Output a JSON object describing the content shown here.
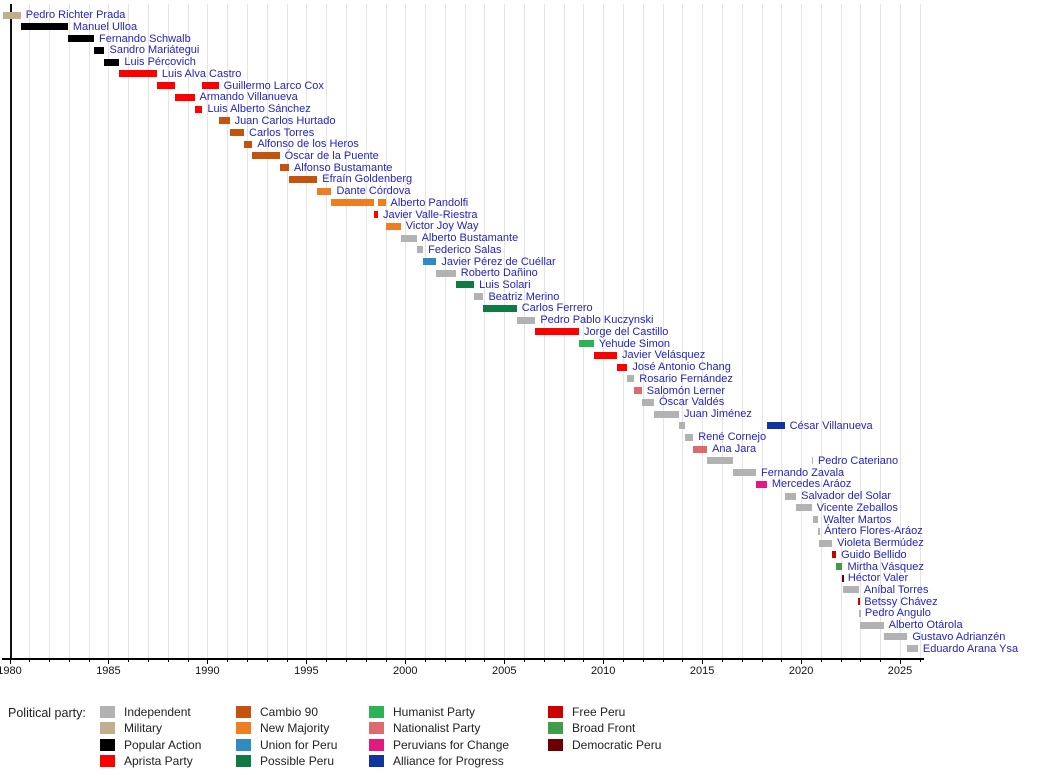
{
  "chart_data": {
    "type": "timeline",
    "x_axis": {
      "start": 1979.65,
      "end": 2026.2,
      "major_ticks": [
        1980,
        1985,
        1990,
        1995,
        2000,
        2005,
        2010,
        2015,
        2020,
        2025
      ],
      "minor_tick_interval": 1,
      "grid": true
    },
    "parties": {
      "independent": {
        "label": "Independent",
        "color": "#b2b2b2"
      },
      "military": {
        "label": "Military",
        "color": "#c0ae8d"
      },
      "popular_action": {
        "label": "Popular Action",
        "color": "#000000"
      },
      "aprista": {
        "label": "Aprista Party",
        "color": "#ff0000"
      },
      "cambio_90": {
        "label": "Cambio 90",
        "color": "#c4540d"
      },
      "new_majority": {
        "label": "New Majority",
        "color": "#ef7d22"
      },
      "union_for_peru": {
        "label": "Union for Peru",
        "color": "#2f8bc0"
      },
      "possible_peru": {
        "label": "Possible Peru",
        "color": "#107a45"
      },
      "humanist": {
        "label": "Humanist Party",
        "color": "#2bb356"
      },
      "nationalist": {
        "label": "Nationalist Party",
        "color": "#dd6a6d"
      },
      "peruvians_for_change": {
        "label": "Peruvians for Change",
        "color": "#e4197e"
      },
      "alliance_for_progress": {
        "label": "Alliance for Progress",
        "color": "#10359f"
      },
      "free_peru": {
        "label": "Free Peru",
        "color": "#cc0000"
      },
      "broad_front": {
        "label": "Broad Front",
        "color": "#3f9d49"
      },
      "democratic_peru": {
        "label": "Democratic Peru",
        "color": "#6b0000"
      }
    },
    "ministers": [
      {
        "name": "Pedro Richter Prada",
        "terms": [
          {
            "start": 1979.65,
            "end": 1980.57,
            "party": "military"
          }
        ]
      },
      {
        "name": "Manuel Ulloa",
        "terms": [
          {
            "start": 1980.57,
            "end": 1982.95,
            "party": "popular_action"
          }
        ]
      },
      {
        "name": "Fernando Schwalb",
        "terms": [
          {
            "start": 1982.95,
            "end": 1984.27,
            "party": "popular_action"
          }
        ]
      },
      {
        "name": "Sandro Mariátegui",
        "terms": [
          {
            "start": 1984.27,
            "end": 1984.8,
            "party": "popular_action"
          }
        ]
      },
      {
        "name": "Luis Pércovich",
        "terms": [
          {
            "start": 1984.8,
            "end": 1985.55,
            "party": "popular_action"
          }
        ]
      },
      {
        "name": "Luis Alva Castro",
        "terms": [
          {
            "start": 1985.55,
            "end": 1987.45,
            "party": "aprista"
          }
        ]
      },
      {
        "name": "Guillermo Larco Cox",
        "terms": [
          {
            "start": 1987.45,
            "end": 1988.37,
            "party": "aprista"
          },
          {
            "start": 1989.75,
            "end": 1990.57,
            "party": "aprista"
          }
        ]
      },
      {
        "name": "Armando Villanueva",
        "terms": [
          {
            "start": 1988.37,
            "end": 1989.35,
            "party": "aprista"
          }
        ]
      },
      {
        "name": "Luis Alberto Sánchez",
        "terms": [
          {
            "start": 1989.35,
            "end": 1989.75,
            "party": "aprista"
          }
        ]
      },
      {
        "name": "Juan Carlos Hurtado",
        "terms": [
          {
            "start": 1990.57,
            "end": 1991.12,
            "party": "cambio_90"
          }
        ]
      },
      {
        "name": "Carlos Torres",
        "terms": [
          {
            "start": 1991.12,
            "end": 1991.85,
            "party": "cambio_90"
          }
        ]
      },
      {
        "name": "Alfonso de los Heros",
        "terms": [
          {
            "start": 1991.85,
            "end": 1992.27,
            "party": "cambio_90"
          }
        ]
      },
      {
        "name": "Óscar de la Puente",
        "terms": [
          {
            "start": 1992.27,
            "end": 1993.65,
            "party": "cambio_90"
          }
        ]
      },
      {
        "name": "Alfonso Bustamante",
        "terms": [
          {
            "start": 1993.65,
            "end": 1994.12,
            "party": "cambio_90"
          }
        ]
      },
      {
        "name": "Efraín Goldenberg",
        "terms": [
          {
            "start": 1994.12,
            "end": 1995.55,
            "party": "cambio_90"
          }
        ]
      },
      {
        "name": "Dante Córdova",
        "terms": [
          {
            "start": 1995.55,
            "end": 1996.27,
            "party": "new_majority"
          }
        ]
      },
      {
        "name": "Alberto Pandolfi",
        "terms": [
          {
            "start": 1996.27,
            "end": 1998.42,
            "party": "new_majority"
          },
          {
            "start": 1998.62,
            "end": 1999.0,
            "party": "new_majority"
          }
        ]
      },
      {
        "name": "Javier Valle-Riestra",
        "terms": [
          {
            "start": 1998.42,
            "end": 1998.62,
            "party": "aprista"
          }
        ]
      },
      {
        "name": "Victor Joy Way",
        "terms": [
          {
            "start": 1999.0,
            "end": 1999.77,
            "party": "new_majority"
          }
        ]
      },
      {
        "name": "Alberto Bustamante",
        "terms": [
          {
            "start": 1999.77,
            "end": 2000.57,
            "party": "independent"
          }
        ]
      },
      {
        "name": "Federico Salas",
        "terms": [
          {
            "start": 2000.57,
            "end": 2000.9,
            "party": "independent"
          }
        ]
      },
      {
        "name": "Javier Pérez de Cuéllar",
        "terms": [
          {
            "start": 2000.9,
            "end": 2001.57,
            "party": "union_for_peru"
          }
        ]
      },
      {
        "name": "Roberto Dañino",
        "terms": [
          {
            "start": 2001.57,
            "end": 2002.55,
            "party": "independent"
          }
        ]
      },
      {
        "name": "Luis Solari",
        "terms": [
          {
            "start": 2002.55,
            "end": 2003.48,
            "party": "possible_peru"
          }
        ]
      },
      {
        "name": "Beatriz Merino",
        "terms": [
          {
            "start": 2003.48,
            "end": 2003.95,
            "party": "independent"
          }
        ]
      },
      {
        "name": "Carlos Ferrero",
        "terms": [
          {
            "start": 2003.95,
            "end": 2005.63,
            "party": "possible_peru"
          }
        ]
      },
      {
        "name": "Pedro Pablo Kuczynski",
        "terms": [
          {
            "start": 2005.63,
            "end": 2006.57,
            "party": "independent"
          }
        ]
      },
      {
        "name": "Jorge del Castillo",
        "terms": [
          {
            "start": 2006.57,
            "end": 2008.78,
            "party": "aprista"
          }
        ]
      },
      {
        "name": "Yehude Simon",
        "terms": [
          {
            "start": 2008.78,
            "end": 2009.53,
            "party": "humanist"
          }
        ]
      },
      {
        "name": "Javier Velásquez",
        "terms": [
          {
            "start": 2009.53,
            "end": 2010.7,
            "party": "aprista"
          }
        ]
      },
      {
        "name": "José Antonio Chang",
        "terms": [
          {
            "start": 2010.7,
            "end": 2011.22,
            "party": "aprista"
          }
        ]
      },
      {
        "name": "Rosario Fernández",
        "terms": [
          {
            "start": 2011.22,
            "end": 2011.57,
            "party": "independent"
          }
        ]
      },
      {
        "name": "Salomón Lerner",
        "terms": [
          {
            "start": 2011.57,
            "end": 2011.95,
            "party": "nationalist"
          }
        ]
      },
      {
        "name": "Óscar Valdés",
        "terms": [
          {
            "start": 2011.95,
            "end": 2012.57,
            "party": "independent"
          }
        ]
      },
      {
        "name": "Juan Jiménez",
        "terms": [
          {
            "start": 2012.57,
            "end": 2013.83,
            "party": "independent"
          }
        ]
      },
      {
        "name": "César Villanueva",
        "terms": [
          {
            "start": 2013.83,
            "end": 2014.15,
            "party": "independent"
          },
          {
            "start": 2018.27,
            "end": 2019.17,
            "party": "alliance_for_progress"
          }
        ]
      },
      {
        "name": "René Cornejo",
        "terms": [
          {
            "start": 2014.15,
            "end": 2014.55,
            "party": "independent"
          }
        ]
      },
      {
        "name": "Ana Jara",
        "terms": [
          {
            "start": 2014.55,
            "end": 2015.25,
            "party": "nationalist"
          }
        ]
      },
      {
        "name": "Pedro Cateriano",
        "terms": [
          {
            "start": 2015.25,
            "end": 2016.57,
            "party": "independent"
          },
          {
            "start": 2020.54,
            "end": 2020.6,
            "party": "independent"
          }
        ]
      },
      {
        "name": "Fernando Zavala",
        "terms": [
          {
            "start": 2016.57,
            "end": 2017.72,
            "party": "independent"
          }
        ]
      },
      {
        "name": "Mercedes Aráoz",
        "terms": [
          {
            "start": 2017.72,
            "end": 2018.27,
            "party": "peruvians_for_change"
          }
        ]
      },
      {
        "name": "Salvador del Solar",
        "terms": [
          {
            "start": 2019.17,
            "end": 2019.75,
            "party": "independent"
          }
        ]
      },
      {
        "name": "Vicente Zeballos",
        "terms": [
          {
            "start": 2019.75,
            "end": 2020.54,
            "party": "independent"
          }
        ]
      },
      {
        "name": "Walter Martos",
        "terms": [
          {
            "start": 2020.6,
            "end": 2020.87,
            "party": "independent"
          }
        ]
      },
      {
        "name": "Ántero Flores-Aráoz",
        "terms": [
          {
            "start": 2020.87,
            "end": 2020.92,
            "party": "independent"
          }
        ]
      },
      {
        "name": "Violeta Bermúdez",
        "terms": [
          {
            "start": 2020.92,
            "end": 2021.57,
            "party": "independent"
          }
        ]
      },
      {
        "name": "Guido Bellido",
        "terms": [
          {
            "start": 2021.57,
            "end": 2021.77,
            "party": "free_peru"
          }
        ]
      },
      {
        "name": "Mirtha Vásquez",
        "terms": [
          {
            "start": 2021.77,
            "end": 2022.09,
            "party": "broad_front"
          }
        ]
      },
      {
        "name": "Héctor Valer",
        "terms": [
          {
            "start": 2022.09,
            "end": 2022.11,
            "party": "democratic_peru"
          }
        ]
      },
      {
        "name": "Aníbal Torres",
        "terms": [
          {
            "start": 2022.11,
            "end": 2022.92,
            "party": "independent"
          }
        ]
      },
      {
        "name": "Betssy Chávez",
        "terms": [
          {
            "start": 2022.9,
            "end": 2022.94,
            "party": "free_peru"
          }
        ]
      },
      {
        "name": "Pedro Angulo",
        "terms": [
          {
            "start": 2022.94,
            "end": 2022.97,
            "party": "independent"
          }
        ]
      },
      {
        "name": "Alberto Otárola",
        "terms": [
          {
            "start": 2022.97,
            "end": 2024.17,
            "party": "independent"
          }
        ]
      },
      {
        "name": "Gustavo Adrianzén",
        "terms": [
          {
            "start": 2024.17,
            "end": 2025.37,
            "party": "independent"
          }
        ]
      },
      {
        "name": "Eduardo Arana Ysa",
        "terms": [
          {
            "start": 2025.37,
            "end": 2025.9,
            "party": "independent"
          }
        ]
      }
    ]
  },
  "legend": {
    "title": "Political party:",
    "columns": [
      [
        "independent",
        "military",
        "popular_action",
        "aprista"
      ],
      [
        "cambio_90",
        "new_majority",
        "union_for_peru",
        "possible_peru"
      ],
      [
        "humanist",
        "nationalist",
        "peruvians_for_change",
        "alliance_for_progress"
      ],
      [
        "free_peru",
        "broad_front",
        "democratic_peru"
      ]
    ]
  }
}
